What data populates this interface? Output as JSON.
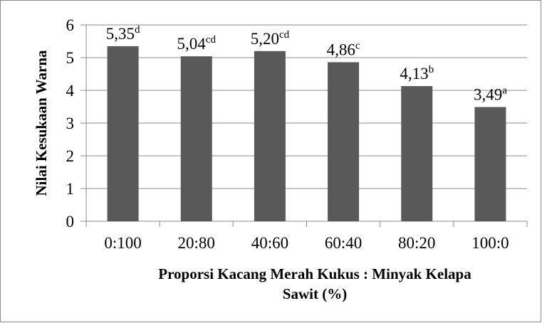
{
  "chart_data": {
    "type": "bar",
    "categories": [
      "0:100",
      "20:80",
      "40:60",
      "60:40",
      "80:20",
      "100:0"
    ],
    "values": [
      5.35,
      5.04,
      5.2,
      4.86,
      4.13,
      3.49
    ],
    "data_labels": [
      {
        "value": "5,35",
        "sup": "d"
      },
      {
        "value": "5,04",
        "sup": "cd"
      },
      {
        "value": "5,20",
        "sup": "cd"
      },
      {
        "value": "4,86",
        "sup": "c"
      },
      {
        "value": "4,13",
        "sup": "b"
      },
      {
        "value": "3,49",
        "sup": "a"
      }
    ],
    "yticks": [
      "0",
      "1",
      "2",
      "3",
      "4",
      "5",
      "6"
    ],
    "ylim": [
      0,
      6
    ],
    "ylabel": "Nilai Kesukaan Warna",
    "xlabel_line1": "Proporsi Kacang Merah Kukus : Minyak Kelapa",
    "xlabel_line2": "Sawit (%)",
    "grid": true,
    "bar_color": "#595959",
    "grid_color": "#8c8c8c"
  }
}
